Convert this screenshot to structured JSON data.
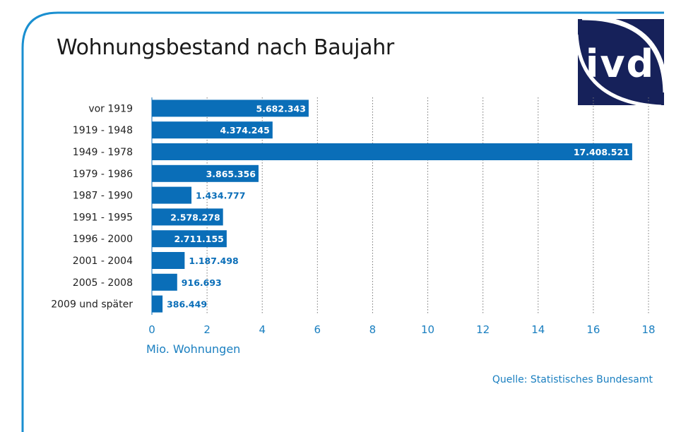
{
  "title": "Wohnungsbestand nach Baujahr",
  "logo_text": "ivd",
  "source": "Quelle: Statistisches Bundesamt",
  "colors": {
    "bar": "#0a6eb8",
    "accent": "#1a7fc0",
    "logo_bg": "#16215a",
    "frame": "#1a8fd0"
  },
  "chart_data": {
    "type": "bar",
    "orientation": "horizontal",
    "categories": [
      "vor 1919",
      "1919 - 1948",
      "1949 - 1978",
      "1979 - 1986",
      "1987 - 1990",
      "1991 - 1995",
      "1996 - 2000",
      "2001 - 2004",
      "2005 - 2008",
      "2009 und später"
    ],
    "values": [
      5682343,
      4374245,
      17408521,
      3865356,
      1434777,
      2578278,
      2711155,
      1187498,
      916693,
      386449
    ],
    "value_labels": [
      "5.682.343",
      "4.374.245",
      "17.408.521",
      "3.865.356",
      "1.434.777",
      "2.578.278",
      "2.711.155",
      "1.187.498",
      "916.693",
      "386.449"
    ],
    "xlabel": "Mio. Wohnungen",
    "ylabel": "",
    "xlim": [
      0,
      18
    ],
    "xticks": [
      0,
      2,
      4,
      6,
      8,
      10,
      12,
      14,
      16,
      18
    ],
    "grid": "vertical dotted"
  }
}
